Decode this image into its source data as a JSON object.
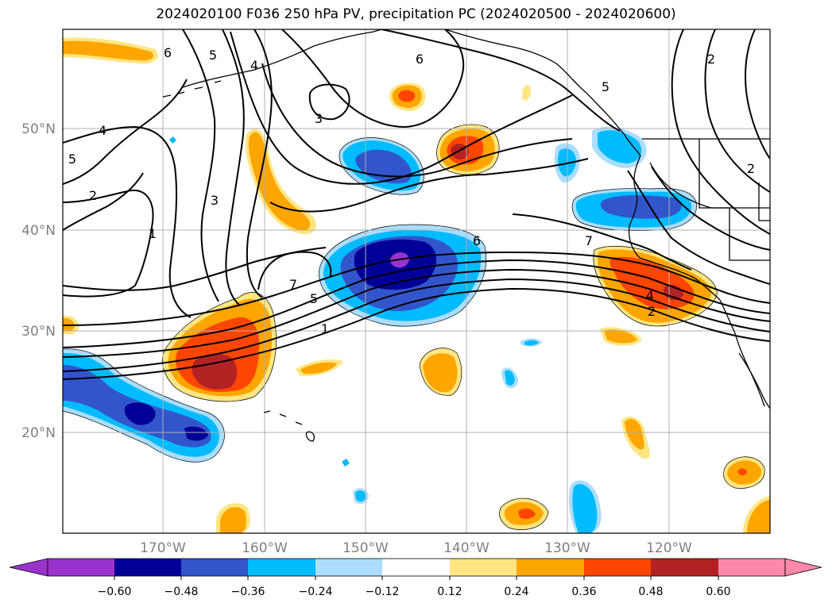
{
  "title": "2024020100 F036 250 hPa PV, precipitation PC (2024020500 - 2024020600)",
  "lat_ticks": [
    "50°N",
    "40°N",
    "30°N",
    "20°N"
  ],
  "lon_ticks": [
    "170°W",
    "160°W",
    "150°W",
    "140°W",
    "130°W",
    "120°W"
  ],
  "colorbar": {
    "labels": [
      "−0.60",
      "−0.48",
      "−0.36",
      "−0.24",
      "−0.12",
      "0.12",
      "0.24",
      "0.36",
      "0.48",
      "0.60"
    ],
    "colors": [
      "#9933cc",
      "#000099",
      "#3355cc",
      "#00bbff",
      "#aaddff",
      "#ffffff",
      "#ffe680",
      "#ffa500",
      "#ff4500",
      "#b22222",
      "#ff88aa"
    ]
  },
  "contour_labels": [
    "6",
    "5",
    "4",
    "6",
    "5",
    "3",
    "2",
    "4",
    "5",
    "2",
    "3",
    "1",
    "7",
    "5",
    "1",
    "6",
    "7",
    "2",
    "4",
    "2"
  ],
  "colors": {
    "coastline": "#000000",
    "grid": "#b0b0b0",
    "pv_contour": "#000000"
  }
}
